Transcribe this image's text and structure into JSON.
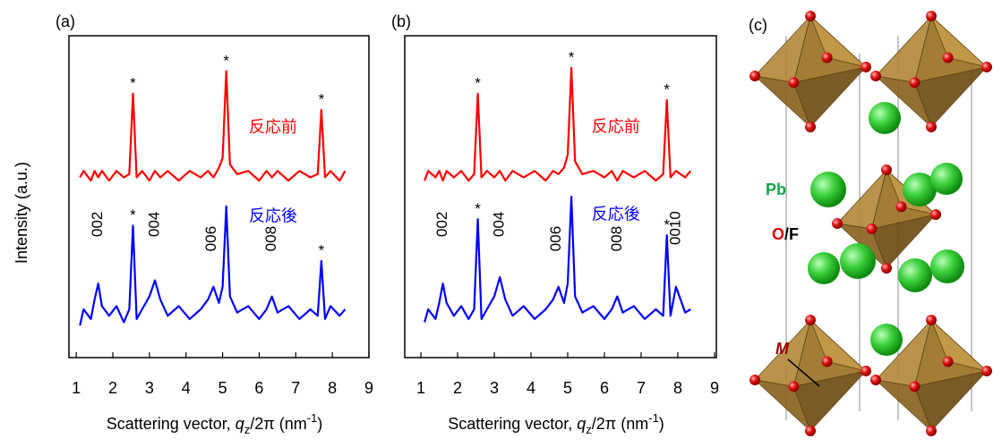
{
  "chart_data": [
    {
      "type": "line",
      "title": "(a)",
      "ylabel": "Intensity (a.u.)",
      "xlabel": {
        "prefix": "Scattering vector, ",
        "q": "q",
        "sub": "z",
        "mid": "/2π (nm",
        "sup": "-1",
        "suffix": ")"
      },
      "x": [
        1.1,
        1.2,
        1.4,
        1.5,
        1.6,
        1.7,
        1.9,
        2.1,
        2.3,
        2.45,
        2.55,
        2.65,
        2.8,
        3.0,
        3.15,
        3.3,
        3.5,
        3.8,
        4.1,
        4.4,
        4.6,
        4.75,
        4.9,
        5.0,
        5.1,
        5.2,
        5.4,
        5.7,
        6.0,
        6.2,
        6.35,
        6.5,
        6.8,
        7.1,
        7.4,
        7.6,
        7.7,
        7.8,
        7.95,
        8.2,
        8.35
      ],
      "series": [
        {
          "name": "反応前",
          "color": "#ff0000",
          "values": [
            5.6,
            5.8,
            5.5,
            5.8,
            5.6,
            5.8,
            5.5,
            5.8,
            5.6,
            5.7,
            8.2,
            5.6,
            5.8,
            5.5,
            5.8,
            5.6,
            5.8,
            5.5,
            5.8,
            5.6,
            5.8,
            5.6,
            5.9,
            6.2,
            8.9,
            6.0,
            5.7,
            5.8,
            5.5,
            5.8,
            5.6,
            5.8,
            5.5,
            5.8,
            5.6,
            5.7,
            7.7,
            5.6,
            5.8,
            5.5,
            5.8
          ]
        },
        {
          "name": "反応後",
          "color": "#0000ff",
          "values": [
            1.0,
            1.5,
            1.2,
            1.8,
            2.3,
            1.6,
            1.3,
            1.6,
            1.1,
            1.5,
            4.1,
            1.2,
            1.5,
            1.9,
            2.4,
            1.8,
            1.3,
            1.6,
            1.2,
            1.5,
            1.8,
            2.2,
            1.7,
            2.2,
            4.7,
            1.9,
            1.4,
            1.6,
            1.2,
            1.5,
            1.9,
            1.4,
            1.6,
            1.2,
            1.5,
            1.3,
            3.0,
            1.2,
            1.6,
            1.3,
            1.5
          ]
        }
      ],
      "annotations": [
        {
          "text": "*",
          "x": 2.55,
          "y": 8.5
        },
        {
          "text": "*",
          "x": 5.1,
          "y": 9.2
        },
        {
          "text": "*",
          "x": 7.7,
          "y": 8.0
        },
        {
          "text": "*",
          "x": 2.55,
          "y": 4.4
        },
        {
          "text": "*",
          "x": 7.7,
          "y": 3.3
        },
        {
          "text": "002",
          "x": 1.6,
          "y": 3.75
        },
        {
          "text": "004",
          "x": 3.15,
          "y": 3.75
        },
        {
          "text": "006",
          "x": 4.7,
          "y": 3.3
        },
        {
          "text": "008",
          "x": 6.35,
          "y": 3.3
        }
      ],
      "xlim": [
        0.8,
        9.0
      ],
      "ylim": [
        0,
        10
      ],
      "xticks": [
        1,
        2,
        3,
        4,
        5,
        6,
        7,
        8,
        9
      ]
    },
    {
      "type": "line",
      "title": "(b)",
      "xlabel": {
        "prefix": "Scattering vector, ",
        "q": "q",
        "sub": "z",
        "mid": "/2π (nm",
        "sup": "-1",
        "suffix": ")"
      },
      "x": [
        1.1,
        1.2,
        1.4,
        1.5,
        1.6,
        1.7,
        1.9,
        2.1,
        2.3,
        2.45,
        2.55,
        2.65,
        2.8,
        3.0,
        3.15,
        3.3,
        3.5,
        3.8,
        4.1,
        4.4,
        4.6,
        4.75,
        4.9,
        5.0,
        5.1,
        5.2,
        5.4,
        5.7,
        6.0,
        6.2,
        6.35,
        6.5,
        6.8,
        7.1,
        7.4,
        7.6,
        7.7,
        7.8,
        7.95,
        8.2,
        8.35
      ],
      "series": [
        {
          "name": "反応前",
          "color": "#ff0000",
          "values": [
            5.5,
            5.8,
            5.6,
            5.8,
            5.5,
            5.8,
            5.6,
            5.8,
            5.5,
            5.7,
            8.2,
            5.6,
            5.8,
            5.6,
            5.8,
            5.5,
            5.8,
            5.6,
            5.8,
            5.5,
            5.8,
            5.7,
            5.9,
            6.3,
            9.0,
            6.1,
            5.7,
            5.8,
            5.6,
            5.8,
            5.5,
            5.8,
            5.6,
            5.8,
            5.5,
            5.7,
            8.0,
            5.6,
            5.8,
            5.6,
            5.8
          ]
        },
        {
          "name": "反応後",
          "color": "#0000ff",
          "values": [
            1.1,
            1.5,
            1.2,
            1.7,
            2.3,
            1.7,
            1.3,
            1.6,
            1.2,
            1.5,
            4.3,
            1.2,
            1.5,
            1.9,
            2.5,
            1.8,
            1.3,
            1.6,
            1.2,
            1.5,
            1.8,
            2.2,
            1.7,
            2.3,
            5.0,
            1.9,
            1.4,
            1.6,
            1.2,
            1.5,
            1.9,
            1.4,
            1.6,
            1.2,
            1.5,
            1.3,
            3.8,
            1.3,
            2.2,
            1.4,
            1.5
          ]
        }
      ],
      "annotations": [
        {
          "text": "*",
          "x": 2.55,
          "y": 8.5
        },
        {
          "text": "*",
          "x": 5.1,
          "y": 9.3
        },
        {
          "text": "*",
          "x": 7.7,
          "y": 8.3
        },
        {
          "text": "*",
          "x": 2.55,
          "y": 4.6
        },
        {
          "text": "*",
          "x": 7.7,
          "y": 4.1
        },
        {
          "text": "002",
          "x": 1.6,
          "y": 3.75
        },
        {
          "text": "004",
          "x": 3.15,
          "y": 3.75
        },
        {
          "text": "006",
          "x": 4.7,
          "y": 3.3
        },
        {
          "text": "008",
          "x": 6.35,
          "y": 3.3
        },
        {
          "text": "0010",
          "x": 7.95,
          "y": 3.5
        }
      ],
      "xlim": [
        0.56,
        9.05
      ],
      "ylim": [
        0,
        10
      ],
      "xticks": [
        1,
        2,
        3,
        4,
        5,
        6,
        7,
        8,
        9
      ]
    }
  ],
  "structure": {
    "label": "(c)",
    "pb": "Pb",
    "o": "O",
    "f": "/F",
    "m": "M"
  }
}
